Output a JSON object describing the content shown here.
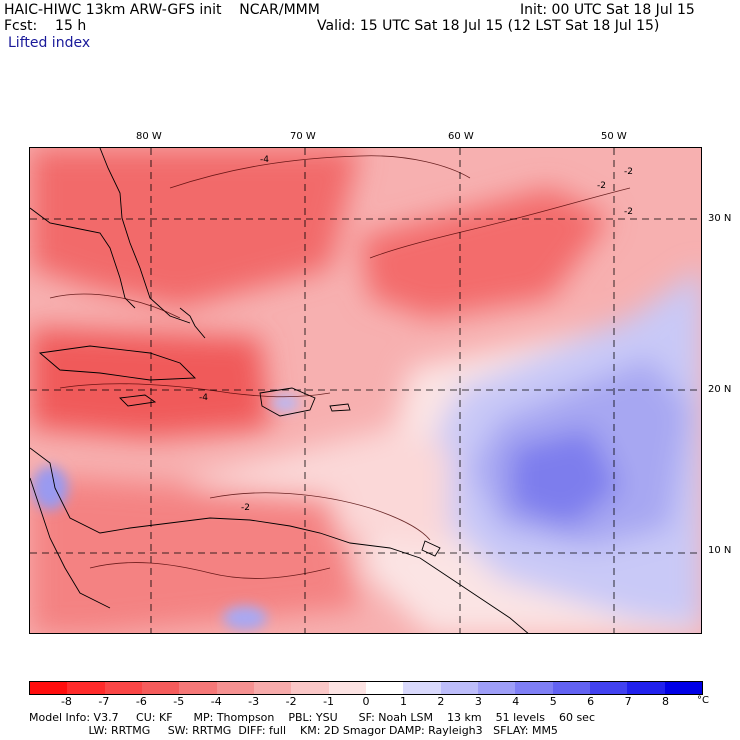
{
  "header": {
    "model_line": "HAIC-HIWC 13km ARW-GFS init    NCAR/MMM",
    "init": "Init: 00 UTC Sat 18 Jul 15",
    "fcst": "Fcst:    15 h",
    "valid": "Valid: 15 UTC Sat 18 Jul 15 (12 LST Sat 18 Jul 15)",
    "field": "Lifted index"
  },
  "map": {
    "lon_labels": [
      "80 W",
      "70 W",
      "60 W",
      "50 W"
    ],
    "lat_labels": [
      "30 N",
      "20 N",
      "10 N"
    ],
    "contour_labels": [
      "-4",
      "-2",
      "-2",
      "-2",
      "-2",
      "-4"
    ]
  },
  "colorbar": {
    "ticks": [
      "-8",
      "-7",
      "-6",
      "-5",
      "-4",
      "-3",
      "-2",
      "-1",
      "0",
      "1",
      "2",
      "3",
      "4",
      "5",
      "6",
      "7",
      "8"
    ],
    "unit": "°C",
    "colors": [
      "#ff0d0d",
      "#ff2b2b",
      "#fa4646",
      "#f55c5c",
      "#f57878",
      "#f59191",
      "#f7abab",
      "#fac7c7",
      "#fce3e3",
      "#ffffff",
      "#d9d9fc",
      "#bdbdfa",
      "#9e9ef7",
      "#7f7ff5",
      "#6262f2",
      "#4242f0",
      "#2121ed",
      "#0000e6"
    ]
  },
  "model_info": {
    "line1": "Model Info: V3.7     CU: KF      MP: Thompson    PBL: YSU      SF: Noah LSM    13 km    51 levels    60 sec",
    "line2": "                 LW: RRTMG     SW: RRTMG  DIFF: full    KM: 2D Smagor DAMP: Rayleigh3   SFLAY: MM5"
  }
}
